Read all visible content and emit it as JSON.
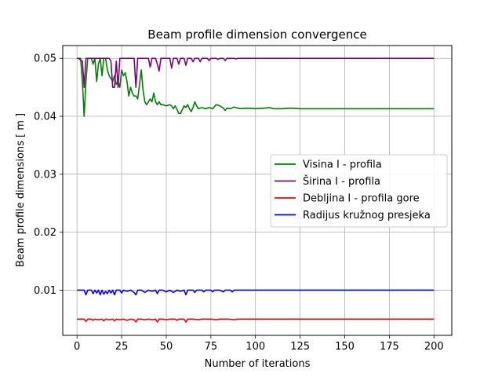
{
  "chart_data": {
    "type": "line",
    "title": "Beam profile dimension convergence",
    "xlabel": "Number of iterations",
    "ylabel": "Beam profile dimensions [ m ]",
    "xlim": [
      -8,
      210
    ],
    "ylim": [
      0.0022,
      0.0522
    ],
    "xticks": [
      0,
      25,
      50,
      75,
      100,
      125,
      150,
      175,
      200
    ],
    "yticks": [
      0.01,
      0.02,
      0.03,
      0.04,
      0.05
    ],
    "ytick_labels": [
      "0.01",
      "0.02",
      "0.03",
      "0.04",
      "0.05"
    ],
    "grid": true,
    "legend_position": "center-right",
    "series": [
      {
        "name": "Visina I - profila",
        "color": "#008000",
        "points": [
          [
            0,
            0.05
          ],
          [
            2,
            0.05
          ],
          [
            3,
            0.046
          ],
          [
            4,
            0.04
          ],
          [
            5,
            0.046
          ],
          [
            6,
            0.05
          ],
          [
            8,
            0.05
          ],
          [
            9,
            0.049
          ],
          [
            10,
            0.05
          ],
          [
            11,
            0.046
          ],
          [
            12,
            0.049
          ],
          [
            13,
            0.05
          ],
          [
            14,
            0.047
          ],
          [
            15,
            0.05
          ],
          [
            16,
            0.05
          ],
          [
            17,
            0.048
          ],
          [
            18,
            0.047
          ],
          [
            19,
            0.0465
          ],
          [
            20,
            0.046
          ],
          [
            21,
            0.047
          ],
          [
            22,
            0.0455
          ],
          [
            23,
            0.046
          ],
          [
            24,
            0.045
          ],
          [
            25,
            0.048
          ],
          [
            26,
            0.047
          ],
          [
            27,
            0.0475
          ],
          [
            28,
            0.046
          ],
          [
            29,
            0.0435
          ],
          [
            30,
            0.045
          ],
          [
            31,
            0.044
          ],
          [
            32,
            0.0435
          ],
          [
            33,
            0.0435
          ],
          [
            34,
            0.043
          ],
          [
            35,
            0.0455
          ],
          [
            36,
            0.048
          ],
          [
            37,
            0.0445
          ],
          [
            38,
            0.0425
          ],
          [
            39,
            0.042
          ],
          [
            40,
            0.0425
          ],
          [
            41,
            0.043
          ],
          [
            42,
            0.0425
          ],
          [
            43,
            0.044
          ],
          [
            44,
            0.0425
          ],
          [
            45,
            0.042
          ],
          [
            46,
            0.0425
          ],
          [
            47,
            0.042
          ],
          [
            48,
            0.042
          ],
          [
            50,
            0.0418
          ],
          [
            52,
            0.042
          ],
          [
            53,
            0.0418
          ],
          [
            54,
            0.0413
          ],
          [
            55,
            0.0418
          ],
          [
            56,
            0.0412
          ],
          [
            57,
            0.0405
          ],
          [
            58,
            0.0405
          ],
          [
            60,
            0.0418
          ],
          [
            61,
            0.0415
          ],
          [
            62,
            0.042
          ],
          [
            63,
            0.0413
          ],
          [
            64,
            0.0408
          ],
          [
            65,
            0.0415
          ],
          [
            66,
            0.0425
          ],
          [
            67,
            0.0418
          ],
          [
            68,
            0.0413
          ],
          [
            70,
            0.0415
          ],
          [
            72,
            0.0413
          ],
          [
            74,
            0.0415
          ],
          [
            76,
            0.0413
          ],
          [
            78,
            0.042
          ],
          [
            80,
            0.0418
          ],
          [
            82,
            0.0414
          ],
          [
            83,
            0.041
          ],
          [
            84,
            0.0414
          ],
          [
            86,
            0.0413
          ],
          [
            88,
            0.0416
          ],
          [
            90,
            0.0414
          ],
          [
            92,
            0.0413
          ],
          [
            95,
            0.0414
          ],
          [
            100,
            0.0413
          ],
          [
            105,
            0.0414
          ],
          [
            108,
            0.0415
          ],
          [
            110,
            0.0413
          ],
          [
            115,
            0.0413
          ],
          [
            120,
            0.0414
          ],
          [
            125,
            0.0413
          ],
          [
            130,
            0.0413
          ],
          [
            140,
            0.0413
          ],
          [
            150,
            0.0413
          ],
          [
            160,
            0.0413
          ],
          [
            170,
            0.0413
          ],
          [
            180,
            0.0413
          ],
          [
            190,
            0.0413
          ],
          [
            200,
            0.0413
          ]
        ]
      },
      {
        "name": "Širina I - profila",
        "color": "#800080",
        "points": [
          [
            0,
            0.05
          ],
          [
            1,
            0.05
          ],
          [
            2,
            0.0497
          ],
          [
            3,
            0.0495
          ],
          [
            4,
            0.045
          ],
          [
            5,
            0.05
          ],
          [
            6,
            0.05
          ],
          [
            8,
            0.05
          ],
          [
            10,
            0.05
          ],
          [
            12,
            0.05
          ],
          [
            15,
            0.05
          ],
          [
            18,
            0.05
          ],
          [
            19,
            0.0495
          ],
          [
            20,
            0.045
          ],
          [
            21,
            0.045
          ],
          [
            22,
            0.0495
          ],
          [
            23,
            0.045
          ],
          [
            24,
            0.05
          ],
          [
            25,
            0.05
          ],
          [
            30,
            0.05
          ],
          [
            32,
            0.05
          ],
          [
            33,
            0.045
          ],
          [
            34,
            0.05
          ],
          [
            35,
            0.05
          ],
          [
            40,
            0.05
          ],
          [
            41,
            0.0485
          ],
          [
            42,
            0.05
          ],
          [
            44,
            0.05
          ],
          [
            45,
            0.049
          ],
          [
            46,
            0.0478
          ],
          [
            47,
            0.05
          ],
          [
            50,
            0.05
          ],
          [
            52,
            0.05
          ],
          [
            53,
            0.0483
          ],
          [
            54,
            0.05
          ],
          [
            56,
            0.05
          ],
          [
            57,
            0.049
          ],
          [
            58,
            0.05
          ],
          [
            60,
            0.05
          ],
          [
            61,
            0.0488
          ],
          [
            62,
            0.05
          ],
          [
            64,
            0.05
          ],
          [
            65,
            0.0494
          ],
          [
            66,
            0.05
          ],
          [
            68,
            0.05
          ],
          [
            69,
            0.0494
          ],
          [
            70,
            0.05
          ],
          [
            73,
            0.05
          ],
          [
            74,
            0.0496
          ],
          [
            75,
            0.05
          ],
          [
            78,
            0.05
          ],
          [
            79,
            0.0498
          ],
          [
            80,
            0.05
          ],
          [
            82,
            0.05
          ],
          [
            83,
            0.0496
          ],
          [
            84,
            0.05
          ],
          [
            88,
            0.05
          ],
          [
            89,
            0.0499
          ],
          [
            90,
            0.05
          ],
          [
            95,
            0.05
          ],
          [
            100,
            0.05
          ],
          [
            110,
            0.05
          ],
          [
            125,
            0.05
          ],
          [
            150,
            0.05
          ],
          [
            175,
            0.05
          ],
          [
            200,
            0.05
          ]
        ]
      },
      {
        "name": "Debljina I - profila gore",
        "color": "#ff0000",
        "points": [
          [
            0,
            0.005
          ],
          [
            4,
            0.005
          ],
          [
            5,
            0.0046
          ],
          [
            6,
            0.005
          ],
          [
            8,
            0.005
          ],
          [
            9,
            0.0048
          ],
          [
            10,
            0.005
          ],
          [
            12,
            0.0049
          ],
          [
            14,
            0.005
          ],
          [
            15,
            0.0047
          ],
          [
            16,
            0.005
          ],
          [
            18,
            0.0049
          ],
          [
            20,
            0.005
          ],
          [
            21,
            0.0047
          ],
          [
            22,
            0.005
          ],
          [
            24,
            0.0049
          ],
          [
            26,
            0.005
          ],
          [
            28,
            0.0048
          ],
          [
            30,
            0.005
          ],
          [
            32,
            0.0049
          ],
          [
            33,
            0.0045
          ],
          [
            34,
            0.005
          ],
          [
            36,
            0.005
          ],
          [
            38,
            0.0049
          ],
          [
            40,
            0.005
          ],
          [
            42,
            0.0049
          ],
          [
            44,
            0.005
          ],
          [
            45,
            0.0045
          ],
          [
            46,
            0.005
          ],
          [
            48,
            0.005
          ],
          [
            50,
            0.0049
          ],
          [
            52,
            0.005
          ],
          [
            55,
            0.005
          ],
          [
            56,
            0.0048
          ],
          [
            57,
            0.005
          ],
          [
            60,
            0.005
          ],
          [
            61,
            0.0045
          ],
          [
            62,
            0.005
          ],
          [
            65,
            0.005
          ],
          [
            68,
            0.0049
          ],
          [
            70,
            0.005
          ],
          [
            75,
            0.005
          ],
          [
            78,
            0.0049
          ],
          [
            80,
            0.005
          ],
          [
            85,
            0.005
          ],
          [
            88,
            0.0049
          ],
          [
            90,
            0.005
          ],
          [
            95,
            0.005
          ],
          [
            100,
            0.005
          ],
          [
            110,
            0.005
          ],
          [
            125,
            0.005
          ],
          [
            150,
            0.005
          ],
          [
            175,
            0.005
          ],
          [
            200,
            0.005
          ]
        ]
      },
      {
        "name": "Radijus kružnog presjeka",
        "color": "#0000ff",
        "points": [
          [
            0,
            0.01
          ],
          [
            4,
            0.01
          ],
          [
            5,
            0.0092
          ],
          [
            6,
            0.01
          ],
          [
            8,
            0.01
          ],
          [
            9,
            0.0094
          ],
          [
            10,
            0.01
          ],
          [
            11,
            0.0095
          ],
          [
            12,
            0.01
          ],
          [
            13,
            0.0092
          ],
          [
            14,
            0.01
          ],
          [
            15,
            0.0093
          ],
          [
            16,
            0.0098
          ],
          [
            17,
            0.0094
          ],
          [
            18,
            0.01
          ],
          [
            19,
            0.0095
          ],
          [
            20,
            0.01
          ],
          [
            21,
            0.0092
          ],
          [
            22,
            0.01
          ],
          [
            24,
            0.01
          ],
          [
            25,
            0.0095
          ],
          [
            26,
            0.01
          ],
          [
            28,
            0.0098
          ],
          [
            30,
            0.01
          ],
          [
            32,
            0.0096
          ],
          [
            33,
            0.0092
          ],
          [
            34,
            0.01
          ],
          [
            36,
            0.01
          ],
          [
            38,
            0.0096
          ],
          [
            40,
            0.01
          ],
          [
            42,
            0.0098
          ],
          [
            44,
            0.01
          ],
          [
            45,
            0.0094
          ],
          [
            46,
            0.01
          ],
          [
            48,
            0.01
          ],
          [
            50,
            0.0097
          ],
          [
            52,
            0.01
          ],
          [
            54,
            0.0096
          ],
          [
            56,
            0.01
          ],
          [
            58,
            0.0098
          ],
          [
            60,
            0.01
          ],
          [
            61,
            0.0092
          ],
          [
            62,
            0.01
          ],
          [
            65,
            0.01
          ],
          [
            66,
            0.0096
          ],
          [
            67,
            0.01
          ],
          [
            70,
            0.01
          ],
          [
            71,
            0.0097
          ],
          [
            72,
            0.01
          ],
          [
            75,
            0.01
          ],
          [
            76,
            0.0097
          ],
          [
            77,
            0.01
          ],
          [
            80,
            0.01
          ],
          [
            82,
            0.0097
          ],
          [
            83,
            0.01
          ],
          [
            86,
            0.01
          ],
          [
            87,
            0.0097
          ],
          [
            88,
            0.01
          ],
          [
            95,
            0.01
          ],
          [
            100,
            0.01
          ],
          [
            110,
            0.01
          ],
          [
            125,
            0.01
          ],
          [
            150,
            0.01
          ],
          [
            175,
            0.01
          ],
          [
            200,
            0.01
          ]
        ]
      }
    ]
  }
}
